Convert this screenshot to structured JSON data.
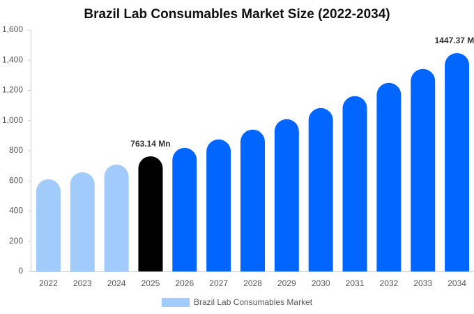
{
  "chart_data": {
    "type": "bar",
    "title": "Brazil Lab Consumables Market Size (2022-2034)",
    "categories": [
      "2022",
      "2023",
      "2024",
      "2025",
      "2026",
      "2027",
      "2028",
      "2029",
      "2030",
      "2031",
      "2032",
      "2033",
      "2034"
    ],
    "series": [
      {
        "name": "Brazil Lab Consumables Market",
        "color": "#a0cbfb",
        "values": [
          611,
          657,
          708,
          763.14,
          819,
          875,
          940,
          1009,
          1083,
          1162,
          1250,
          1342,
          1447.37
        ],
        "value_labels": [
          null,
          null,
          null,
          "763.14 Mn",
          null,
          null,
          null,
          null,
          null,
          null,
          null,
          null,
          "1447.37 Mn"
        ],
        "colors": [
          "#a0cbfb",
          "#a0cbfb",
          "#a0cbfb",
          "#000000",
          "#0066ff",
          "#0066ff",
          "#0066ff",
          "#0066ff",
          "#0066ff",
          "#0066ff",
          "#0066ff",
          "#0066ff",
          "#0066ff"
        ]
      }
    ],
    "ylim": [
      0,
      1600
    ],
    "yticks": [
      0,
      200,
      400,
      600,
      800,
      {
        "value": 1000,
        "label": "1,000"
      },
      {
        "value": 1200,
        "label": "1,200"
      },
      {
        "value": 1400,
        "label": "1,400"
      },
      {
        "value": 1600,
        "label": "1,600"
      }
    ],
    "grid": false
  }
}
